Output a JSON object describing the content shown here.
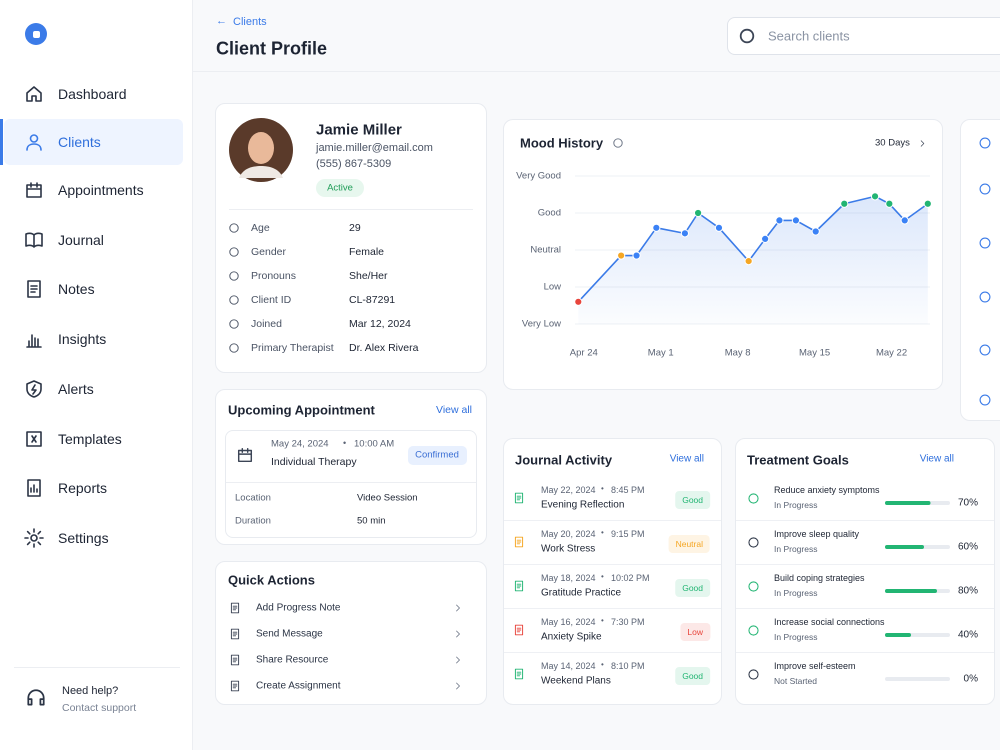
{
  "sidebar": {
    "nav": [
      "Dashboard",
      "Clients",
      "Appointments",
      "Journal",
      "Notes",
      "Insights",
      "Alerts",
      "Templates",
      "Reports",
      "Settings"
    ],
    "active": 1,
    "help": {
      "title": "Need help?",
      "link": "Contact support"
    }
  },
  "header": {
    "breadcrumb": "Clients",
    "title": "Client Profile",
    "search_placeholder": "Search clients"
  },
  "profile": {
    "name": "Jamie Miller",
    "email": "jamie.miller@email.com",
    "phone": "(555) 867-5309",
    "status": "Active",
    "fields": [
      {
        "label": "Age",
        "value": "29"
      },
      {
        "label": "Gender",
        "value": "Female"
      },
      {
        "label": "Pronouns",
        "value": "She/Her"
      },
      {
        "label": "Client ID",
        "value": "CL-87291"
      },
      {
        "label": "Joined",
        "value": "Mar 12, 2024"
      },
      {
        "label": "Primary Therapist",
        "value": "Dr. Alex Rivera"
      }
    ]
  },
  "appointment": {
    "title": "Upcoming Appointment",
    "view_all": "View all",
    "date": "May 24, 2024",
    "time": "10:00 AM",
    "type": "Individual Therapy",
    "status": "Confirmed",
    "details": [
      {
        "label": "Location",
        "value": "Video Session"
      },
      {
        "label": "Duration",
        "value": "50 min"
      }
    ]
  },
  "quick_actions": {
    "title": "Quick Actions",
    "items": [
      "Add Progress Note",
      "Send Message",
      "Share Resource",
      "Create Assignment"
    ]
  },
  "mood_history": {
    "title": "Mood History",
    "range": "30 Days",
    "chart_data": {
      "type": "line",
      "x": [
        -0.5,
        3.4,
        4.8,
        6.6,
        9.2,
        10.4,
        12.3,
        15,
        16.5,
        17.8,
        19.3,
        21.1,
        23.7,
        26.5,
        27.8,
        29.2,
        31.3
      ],
      "values": [
        1.6,
        2.85,
        2.85,
        3.6,
        3.45,
        4.0,
        3.6,
        2.7,
        3.3,
        3.8,
        3.8,
        3.5,
        4.25,
        4.45,
        4.25,
        3.8,
        4.25
      ],
      "point_colors": [
        "#e8453c",
        "#f5a623",
        "#3b82f6",
        "#3b82f6",
        "#3b82f6",
        "#22b573",
        "#3b82f6",
        "#f5a623",
        "#3b82f6",
        "#3b82f6",
        "#3b82f6",
        "#3b82f6",
        "#22b573",
        "#22b573",
        "#22b573",
        "#3b82f6",
        "#22b573"
      ],
      "color": "#3b7be8",
      "xlim": [
        -0.8,
        31.5
      ],
      "ylim": [
        1,
        5
      ],
      "xticks": [
        {
          "value": 0,
          "label": "Apr 24"
        },
        {
          "value": 7,
          "label": "May 1"
        },
        {
          "value": 14,
          "label": "May 8"
        },
        {
          "value": 21,
          "label": "May 15"
        },
        {
          "value": 28,
          "label": "May 22"
        }
      ],
      "yticks": [
        {
          "value": 1,
          "label": "Very Low"
        },
        {
          "value": 2,
          "label": "Low"
        },
        {
          "value": 3,
          "label": "Neutral"
        },
        {
          "value": 4,
          "label": "Good"
        },
        {
          "value": 5,
          "label": "Very Good"
        }
      ],
      "grid": true
    }
  },
  "journal": {
    "title": "Journal Activity",
    "view_all": "View all",
    "entries": [
      {
        "date": "May 22, 2024",
        "time": "8:45 PM",
        "title": "Evening Reflection",
        "mood": "Good",
        "color": "#22b573"
      },
      {
        "date": "May 20, 2024",
        "time": "9:15 PM",
        "title": "Work Stress",
        "mood": "Neutral",
        "color": "#f5a623"
      },
      {
        "date": "May 18, 2024",
        "time": "10:02 PM",
        "title": "Gratitude Practice",
        "mood": "Good",
        "color": "#22b573"
      },
      {
        "date": "May 16, 2024",
        "time": "7:30 PM",
        "title": "Anxiety Spike",
        "mood": "Low",
        "color": "#e8453c"
      },
      {
        "date": "May 14, 2024",
        "time": "8:10 PM",
        "title": "Weekend Plans",
        "mood": "Good",
        "color": "#22b573"
      }
    ]
  },
  "goals": {
    "title": "Treatment Goals",
    "view_all": "View all",
    "items": [
      {
        "title": "Reduce anxiety symptoms",
        "status": "In Progress"
      },
      {
        "title": "Improve sleep quality",
        "status": "In Progress"
      },
      {
        "title": "Build coping strategies",
        "status": "In Progress"
      },
      {
        "title": "Increase social connections",
        "status": "In Progress"
      },
      {
        "title": "Improve self-esteem",
        "status": "Not Started"
      }
    ],
    "values": [
      70,
      60,
      80,
      40,
      0
    ],
    "value_labels": [
      "70%",
      "60%",
      "80%",
      "40%",
      "0%"
    ],
    "color": "#22b573"
  }
}
